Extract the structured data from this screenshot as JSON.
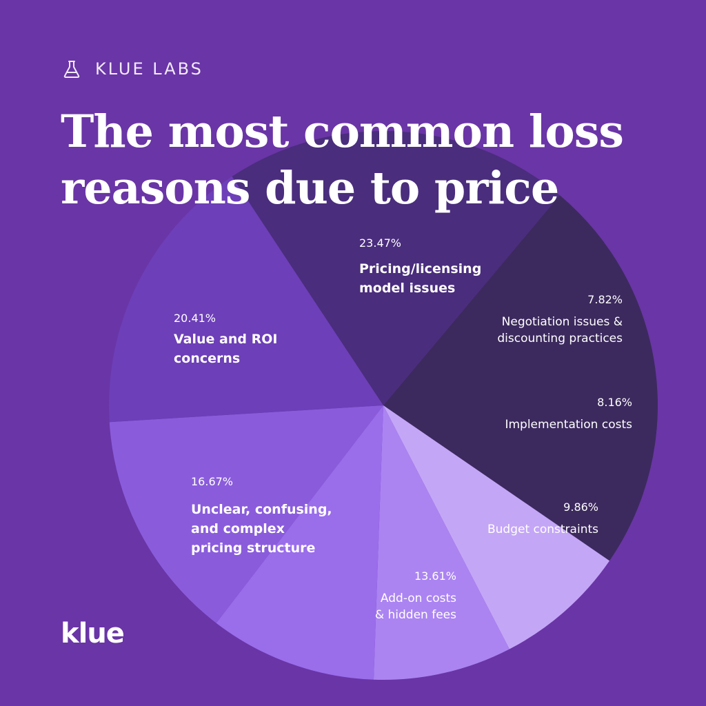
{
  "brand": {
    "lab_name": "KLUE LABS",
    "logo_text": "klue",
    "icon": "flask-icon"
  },
  "headline": {
    "line1": "The most common loss",
    "line2": "reasons due to price"
  },
  "colors": {
    "background": "#6a35a6"
  },
  "chart_data": {
    "type": "pie",
    "title": "The most common loss reasons due to price",
    "slices": [
      {
        "label": "Pricing/licensing model issues",
        "value": 23.47,
        "value_label": "23.47%",
        "color": "#3c2a5e",
        "label_lines": [
          "Pricing/licensing",
          "model issues"
        ]
      },
      {
        "label": "Negotiation issues & discounting practices",
        "value": 7.82,
        "value_label": "7.82%",
        "color": "#c4a6f7",
        "label_lines": [
          "Negotiation issues &",
          "discounting practices"
        ]
      },
      {
        "label": "Implementation costs",
        "value": 8.16,
        "value_label": "8.16%",
        "color": "#ab84f2",
        "label_lines": [
          "Implementation costs"
        ]
      },
      {
        "label": "Budget constraints",
        "value": 9.86,
        "value_label": "9.86%",
        "color": "#9a6deb",
        "label_lines": [
          "Budget constraints"
        ]
      },
      {
        "label": "Add-on costs & hidden fees",
        "value": 13.61,
        "value_label": "13.61%",
        "color": "#8a5cdc",
        "label_lines": [
          "Add-on costs",
          "& hidden fees"
        ]
      },
      {
        "label": "Unclear, confusing, and complex pricing structure",
        "value": 16.67,
        "value_label": "16.67%",
        "color": "#6d3fb8",
        "label_lines": [
          "Unclear, confusing,",
          "and complex",
          "pricing structure"
        ]
      },
      {
        "label": "Value and ROI concerns",
        "value": 20.41,
        "value_label": "20.41%",
        "color": "#4a2d7d",
        "label_lines": [
          "Value and ROI",
          "concerns"
        ]
      }
    ]
  }
}
